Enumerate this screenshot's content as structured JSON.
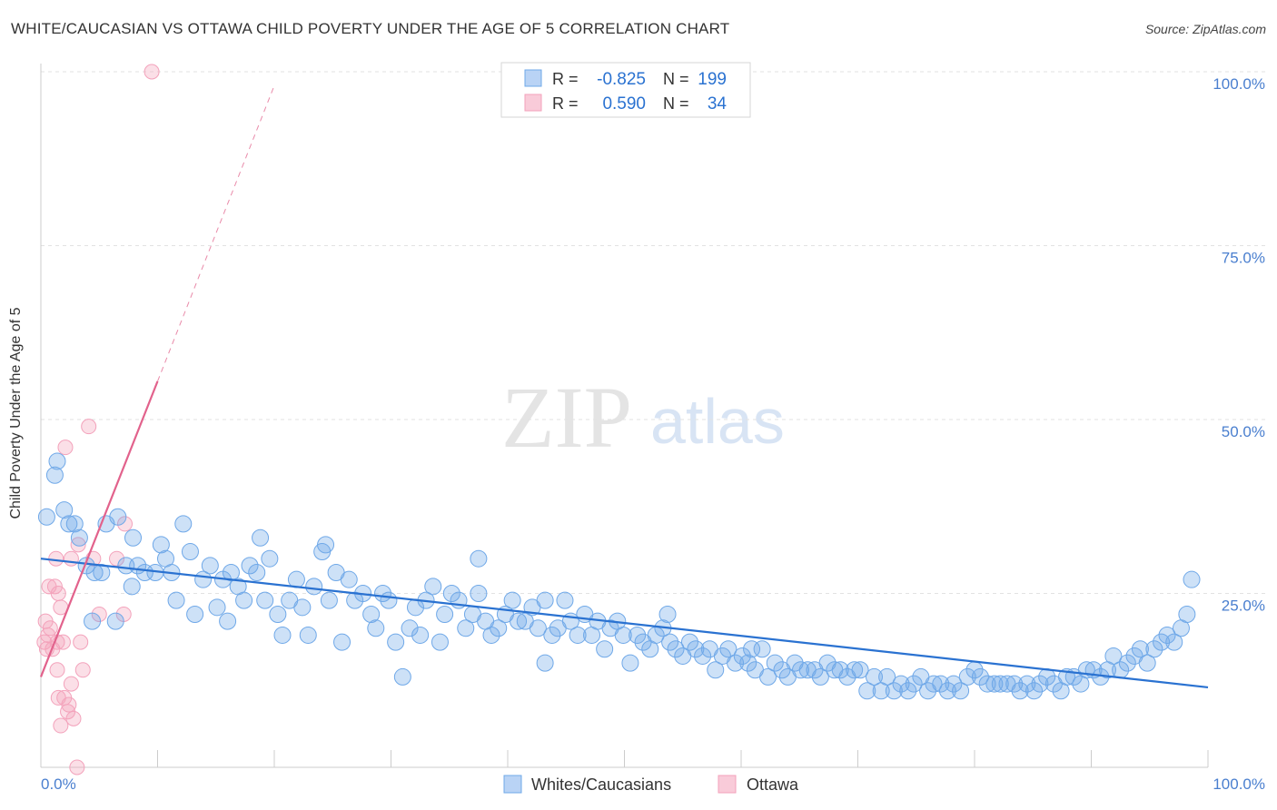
{
  "title": "WHITE/CAUCASIAN VS OTTAWA CHILD POVERTY UNDER THE AGE OF 5 CORRELATION CHART",
  "source": "Source: ZipAtlas.com",
  "watermark": {
    "zip": "ZIP",
    "atlas": "atlas"
  },
  "colors": {
    "blue": "#6fa8e8",
    "blue_line": "#2a72d1",
    "pink": "#f3a2bb",
    "pink_line": "#e2628c",
    "axis_text": "#4a7fcf"
  },
  "legend": [
    {
      "r_label": "R =",
      "r_value": "-0.825",
      "n_label": "N =",
      "n_value": "199"
    },
    {
      "r_label": "R =",
      "r_value": "0.590",
      "n_label": "N =",
      "n_value": "34"
    }
  ],
  "chart_data": {
    "type": "scatter",
    "xlabel": "",
    "ylabel": "Child Poverty Under the Age of 5",
    "xlim": [
      0,
      100
    ],
    "ylim": [
      0,
      100
    ],
    "x_tick_labels": [
      "0.0%",
      "100.0%"
    ],
    "y_tick_values": [
      25,
      50,
      75,
      100
    ],
    "y_tick_labels": [
      "25.0%",
      "50.0%",
      "75.0%",
      "100.0%"
    ],
    "grid": "horizontal dashed",
    "legend_position": "top-center",
    "series": [
      {
        "name": "Whites/Caucasians",
        "color": "#6fa8e8",
        "r": -0.825,
        "n": 199,
        "trend": {
          "x": [
            0,
            100
          ],
          "y": [
            30.0,
            11.5
          ]
        },
        "points": [
          [
            0.5,
            36
          ],
          [
            1.2,
            42
          ],
          [
            1.4,
            44
          ],
          [
            2.0,
            37
          ],
          [
            2.4,
            35
          ],
          [
            2.9,
            35
          ],
          [
            3.3,
            33
          ],
          [
            3.9,
            29
          ],
          [
            4.4,
            21
          ],
          [
            4.6,
            28
          ],
          [
            5.2,
            28
          ],
          [
            5.6,
            35
          ],
          [
            6.4,
            21
          ],
          [
            6.6,
            36
          ],
          [
            7.3,
            29
          ],
          [
            7.8,
            26
          ],
          [
            8.3,
            29
          ],
          [
            8.9,
            28
          ],
          [
            9.8,
            28
          ],
          [
            10.3,
            32
          ],
          [
            10.7,
            30
          ],
          [
            11.2,
            28
          ],
          [
            11.6,
            24
          ],
          [
            12.2,
            35
          ],
          [
            12.8,
            31
          ],
          [
            13.2,
            22
          ],
          [
            13.9,
            27
          ],
          [
            14.5,
            29
          ],
          [
            15.1,
            23
          ],
          [
            15.6,
            27
          ],
          [
            16.3,
            28
          ],
          [
            16.9,
            26
          ],
          [
            17.4,
            24
          ],
          [
            17.9,
            29
          ],
          [
            18.5,
            28
          ],
          [
            19.2,
            24
          ],
          [
            19.6,
            30
          ],
          [
            20.3,
            22
          ],
          [
            20.7,
            19
          ],
          [
            21.3,
            24
          ],
          [
            21.9,
            27
          ],
          [
            22.4,
            23
          ],
          [
            22.9,
            19
          ],
          [
            23.4,
            26
          ],
          [
            24.1,
            31
          ],
          [
            24.7,
            24
          ],
          [
            25.3,
            28
          ],
          [
            25.8,
            18
          ],
          [
            26.4,
            27
          ],
          [
            26.9,
            24
          ],
          [
            27.6,
            25
          ],
          [
            28.3,
            22
          ],
          [
            28.7,
            20
          ],
          [
            29.3,
            25
          ],
          [
            29.8,
            24
          ],
          [
            30.4,
            18
          ],
          [
            31.0,
            13
          ],
          [
            31.6,
            20
          ],
          [
            32.1,
            23
          ],
          [
            32.5,
            19
          ],
          [
            33.0,
            24
          ],
          [
            33.6,
            26
          ],
          [
            34.2,
            18
          ],
          [
            34.6,
            22
          ],
          [
            35.2,
            25
          ],
          [
            35.8,
            24
          ],
          [
            36.4,
            20
          ],
          [
            37.0,
            22
          ],
          [
            37.5,
            25
          ],
          [
            38.1,
            21
          ],
          [
            38.6,
            19
          ],
          [
            39.2,
            20
          ],
          [
            39.8,
            22
          ],
          [
            40.4,
            24
          ],
          [
            40.9,
            21
          ],
          [
            41.5,
            21
          ],
          [
            42.1,
            23
          ],
          [
            42.6,
            20
          ],
          [
            43.2,
            24
          ],
          [
            43.8,
            19
          ],
          [
            44.3,
            20
          ],
          [
            44.9,
            24
          ],
          [
            45.4,
            21
          ],
          [
            46.0,
            19
          ],
          [
            46.6,
            22
          ],
          [
            47.2,
            19
          ],
          [
            47.7,
            21
          ],
          [
            48.3,
            17
          ],
          [
            48.8,
            20
          ],
          [
            49.4,
            21
          ],
          [
            49.9,
            19
          ],
          [
            50.5,
            15
          ],
          [
            51.1,
            19
          ],
          [
            51.6,
            18
          ],
          [
            52.2,
            17
          ],
          [
            52.7,
            19
          ],
          [
            53.3,
            20
          ],
          [
            53.9,
            18
          ],
          [
            54.4,
            17
          ],
          [
            55.0,
            16
          ],
          [
            55.6,
            18
          ],
          [
            56.1,
            17
          ],
          [
            56.7,
            16
          ],
          [
            57.3,
            17
          ],
          [
            57.8,
            14
          ],
          [
            58.4,
            16
          ],
          [
            58.9,
            17
          ],
          [
            59.5,
            15
          ],
          [
            60.1,
            16
          ],
          [
            60.6,
            15
          ],
          [
            61.2,
            14
          ],
          [
            61.8,
            17
          ],
          [
            62.3,
            13
          ],
          [
            62.9,
            15
          ],
          [
            63.5,
            14
          ],
          [
            64.0,
            13
          ],
          [
            64.6,
            15
          ],
          [
            65.1,
            14
          ],
          [
            65.7,
            14
          ],
          [
            66.3,
            14
          ],
          [
            66.8,
            13
          ],
          [
            67.4,
            15
          ],
          [
            68.0,
            14
          ],
          [
            68.5,
            14
          ],
          [
            69.1,
            13
          ],
          [
            69.7,
            14
          ],
          [
            70.2,
            14
          ],
          [
            70.8,
            11
          ],
          [
            71.4,
            13
          ],
          [
            72.0,
            11
          ],
          [
            72.5,
            13
          ],
          [
            73.1,
            11
          ],
          [
            73.7,
            12
          ],
          [
            74.3,
            11
          ],
          [
            74.8,
            12
          ],
          [
            75.4,
            13
          ],
          [
            76.0,
            11
          ],
          [
            76.5,
            12
          ],
          [
            77.1,
            12
          ],
          [
            77.7,
            11
          ],
          [
            78.2,
            12
          ],
          [
            78.8,
            11
          ],
          [
            79.4,
            13
          ],
          [
            80.0,
            14
          ],
          [
            80.5,
            13
          ],
          [
            81.1,
            12
          ],
          [
            81.7,
            12
          ],
          [
            82.2,
            12
          ],
          [
            82.8,
            12
          ],
          [
            83.4,
            12
          ],
          [
            83.9,
            11
          ],
          [
            84.5,
            12
          ],
          [
            85.1,
            11
          ],
          [
            85.6,
            12
          ],
          [
            86.2,
            13
          ],
          [
            86.8,
            12
          ],
          [
            87.4,
            11
          ],
          [
            87.9,
            13
          ],
          [
            88.5,
            13
          ],
          [
            89.1,
            12
          ],
          [
            89.6,
            14
          ],
          [
            90.2,
            14
          ],
          [
            90.8,
            13
          ],
          [
            91.4,
            14
          ],
          [
            91.9,
            16
          ],
          [
            92.5,
            14
          ],
          [
            93.1,
            15
          ],
          [
            93.7,
            16
          ],
          [
            94.2,
            17
          ],
          [
            94.8,
            15
          ],
          [
            95.4,
            17
          ],
          [
            96.0,
            18
          ],
          [
            96.5,
            19
          ],
          [
            97.1,
            18
          ],
          [
            97.7,
            20
          ],
          [
            98.2,
            22
          ],
          [
            98.6,
            27
          ],
          [
            16.0,
            21
          ],
          [
            24.4,
            32
          ],
          [
            37.5,
            30
          ],
          [
            53.7,
            22
          ],
          [
            18.8,
            33
          ],
          [
            7.9,
            33
          ],
          [
            43.2,
            15
          ],
          [
            60.9,
            17
          ]
        ]
      },
      {
        "name": "Ottawa",
        "color": "#f3a2bb",
        "r": 0.59,
        "n": 34,
        "trend": {
          "x": [
            0,
            10
          ],
          "y": [
            13.0,
            55.5
          ]
        },
        "trend_dashed": {
          "x": [
            10,
            20
          ],
          "y": [
            55.5,
            98.0
          ]
        },
        "points": [
          [
            9.5,
            100
          ],
          [
            4.1,
            49
          ],
          [
            2.1,
            46
          ],
          [
            7.2,
            35
          ],
          [
            3.2,
            32
          ],
          [
            1.3,
            30
          ],
          [
            2.6,
            30
          ],
          [
            4.5,
            30
          ],
          [
            6.5,
            30
          ],
          [
            0.7,
            26
          ],
          [
            1.2,
            26
          ],
          [
            1.5,
            25
          ],
          [
            1.7,
            23
          ],
          [
            0.4,
            21
          ],
          [
            0.6,
            19
          ],
          [
            0.3,
            18
          ],
          [
            0.8,
            20
          ],
          [
            1.0,
            17
          ],
          [
            1.4,
            18
          ],
          [
            0.5,
            17
          ],
          [
            1.9,
            18
          ],
          [
            3.4,
            18
          ],
          [
            5.0,
            22
          ],
          [
            7.1,
            22
          ],
          [
            1.4,
            14
          ],
          [
            3.6,
            14
          ],
          [
            2.6,
            12
          ],
          [
            1.5,
            10
          ],
          [
            2.0,
            10
          ],
          [
            2.4,
            9
          ],
          [
            2.3,
            8
          ],
          [
            2.8,
            7
          ],
          [
            1.7,
            6
          ],
          [
            3.1,
            0
          ]
        ]
      }
    ]
  }
}
